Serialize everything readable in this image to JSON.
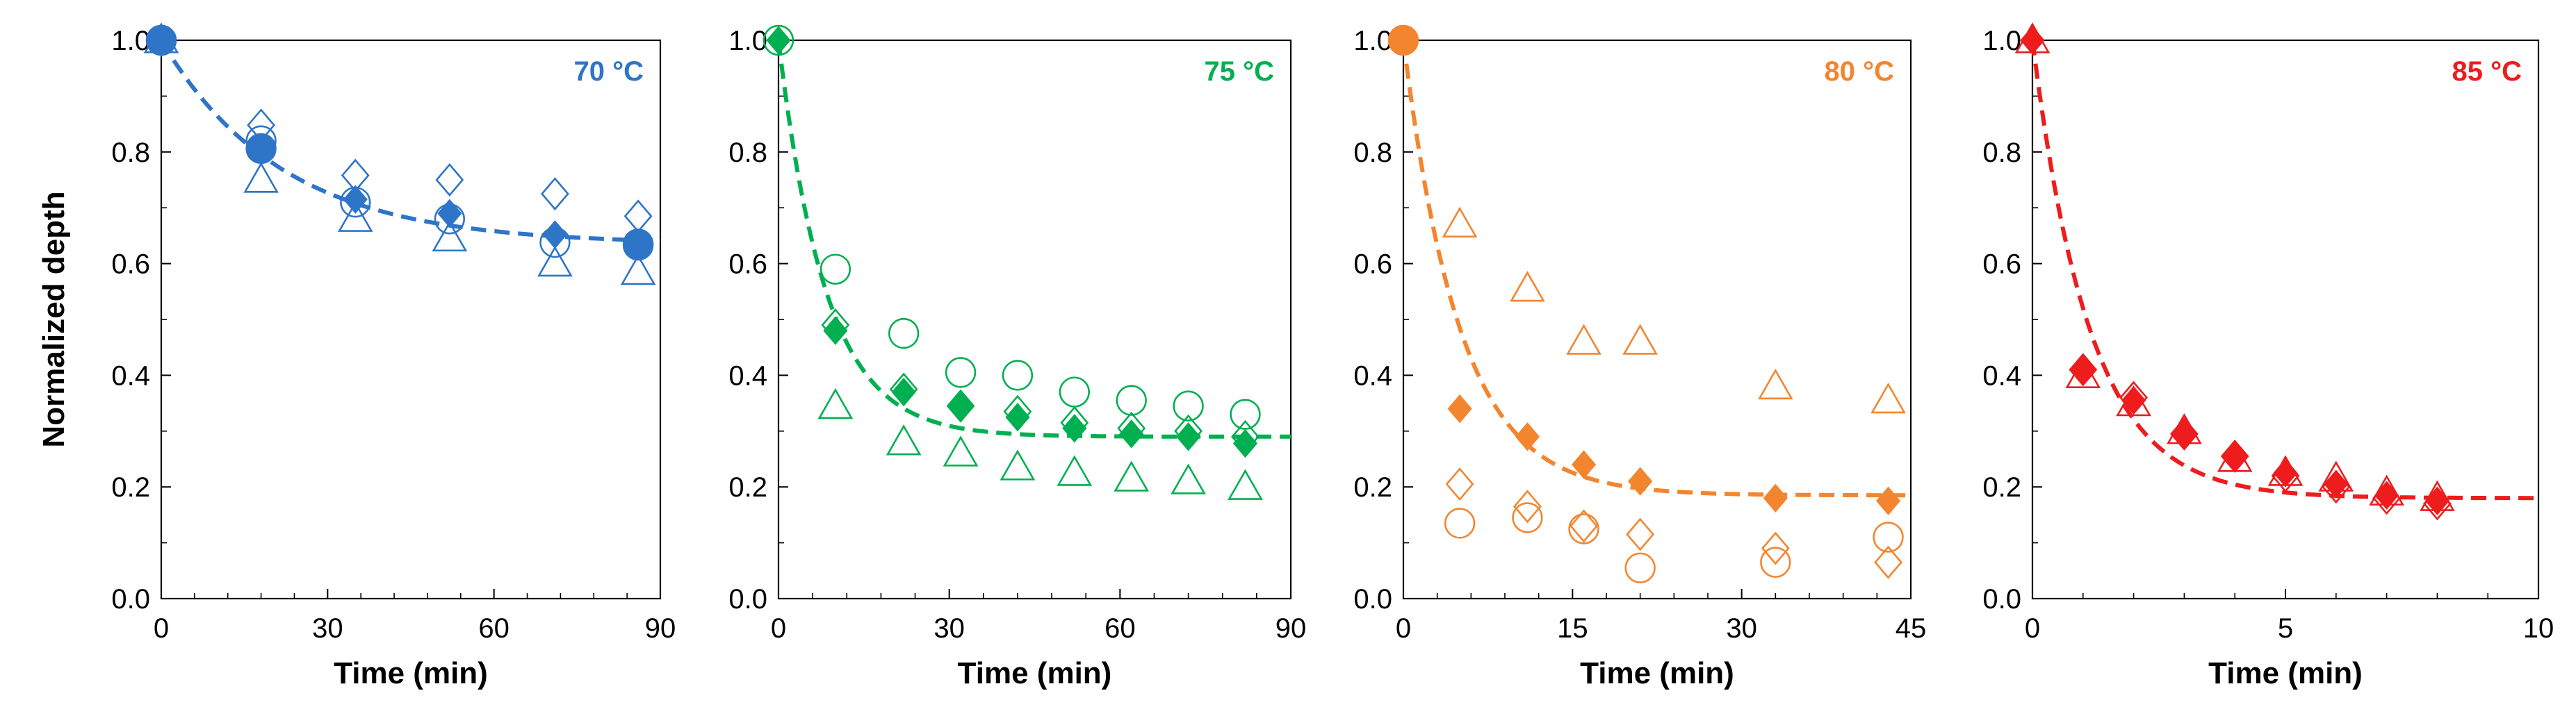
{
  "figure": {
    "ylabel": "Normalized depth"
  },
  "chart_data": [
    {
      "type": "scatter",
      "title": "70 °C",
      "color": "#2E75C8",
      "xlabel": "Time (min)",
      "ylabel": "Normalized depth",
      "xlim": [
        0,
        90
      ],
      "ylim": [
        0,
        1.0
      ],
      "xticks": [
        "0",
        "30",
        "60",
        "90"
      ],
      "yticks": [
        "0.0",
        "0.2",
        "0.4",
        "0.6",
        "0.8",
        "1.0"
      ],
      "fit": {
        "type": "exponential",
        "plateau": 0.635,
        "rate": 0.046
      },
      "series": [
        {
          "name": "filled-diamond",
          "marker": "diamond",
          "filled": true,
          "x": [
            0,
            18,
            35,
            52,
            71,
            86
          ],
          "y": [
            1.0,
            0.805,
            0.715,
            0.69,
            0.652,
            0.635
          ]
        },
        {
          "name": "filled-circle",
          "marker": "circle",
          "filled": true,
          "x": [
            0,
            18,
            86
          ],
          "y": [
            1.0,
            0.806,
            0.635
          ]
        },
        {
          "name": "open-diamond",
          "marker": "diamond",
          "filled": false,
          "x": [
            0,
            18,
            35,
            52,
            71,
            86
          ],
          "y": [
            1.0,
            0.848,
            0.758,
            0.75,
            0.725,
            0.685
          ]
        },
        {
          "name": "open-triangle",
          "marker": "triangle",
          "filled": false,
          "x": [
            0,
            18,
            35,
            52,
            71,
            86
          ],
          "y": [
            1.0,
            0.75,
            0.68,
            0.645,
            0.6,
            0.585
          ]
        },
        {
          "name": "open-circle",
          "marker": "circle",
          "filled": false,
          "x": [
            0,
            18,
            35,
            52,
            71,
            86
          ],
          "y": [
            1.0,
            0.82,
            0.71,
            0.68,
            0.638,
            0.633
          ]
        }
      ]
    },
    {
      "type": "scatter",
      "title": "75 °C",
      "color": "#00B050",
      "xlabel": "Time (min)",
      "ylabel": "",
      "xlim": [
        0,
        90
      ],
      "ylim": [
        0,
        1.0
      ],
      "xticks": [
        "0",
        "30",
        "60",
        "90"
      ],
      "yticks": [
        "0.0",
        "0.2",
        "0.4",
        "0.6",
        "0.8",
        "1.0"
      ],
      "fit": {
        "type": "exponential",
        "plateau": 0.29,
        "rate": 0.12
      },
      "series": [
        {
          "name": "filled-diamond",
          "marker": "diamond",
          "filled": true,
          "x": [
            0,
            10,
            22,
            32,
            42,
            52,
            62,
            72,
            82
          ],
          "y": [
            1.0,
            0.48,
            0.37,
            0.345,
            0.325,
            0.305,
            0.295,
            0.29,
            0.278
          ]
        },
        {
          "name": "open-diamond",
          "marker": "diamond",
          "filled": false,
          "x": [
            10,
            22,
            32,
            42,
            52,
            62,
            72,
            82
          ],
          "y": [
            0.49,
            0.375,
            0.345,
            0.335,
            0.315,
            0.305,
            0.3,
            0.29
          ]
        },
        {
          "name": "open-circle",
          "marker": "circle",
          "filled": false,
          "x": [
            0,
            10,
            22,
            32,
            42,
            52,
            62,
            72,
            82
          ],
          "y": [
            1.0,
            0.59,
            0.475,
            0.405,
            0.4,
            0.37,
            0.355,
            0.345,
            0.33
          ]
        },
        {
          "name": "open-triangle",
          "marker": "triangle",
          "filled": false,
          "x": [
            10,
            22,
            32,
            42,
            52,
            62,
            72,
            82
          ],
          "y": [
            0.345,
            0.28,
            0.26,
            0.235,
            0.225,
            0.215,
            0.21,
            0.2
          ]
        }
      ]
    },
    {
      "type": "scatter",
      "title": "80 °C",
      "color": "#F4852F",
      "xlabel": "Time (min)",
      "ylabel": "",
      "xlim": [
        0,
        45
      ],
      "ylim": [
        0,
        1.0
      ],
      "xticks": [
        "0",
        "15",
        "30",
        "45"
      ],
      "yticks": [
        "0.0",
        "0.2",
        "0.4",
        "0.6",
        "0.8",
        "1.0"
      ],
      "fit": {
        "type": "exponential",
        "plateau": 0.185,
        "rate": 0.2
      },
      "series": [
        {
          "name": "filled-diamond",
          "marker": "diamond",
          "filled": true,
          "x": [
            0,
            5,
            11,
            16,
            21,
            33,
            43
          ],
          "y": [
            1.0,
            0.34,
            0.29,
            0.24,
            0.21,
            0.18,
            0.175
          ]
        },
        {
          "name": "filled-circle",
          "marker": "circle",
          "filled": true,
          "x": [
            0
          ],
          "y": [
            1.0
          ]
        },
        {
          "name": "open-triangle",
          "marker": "triangle",
          "filled": false,
          "x": [
            5,
            11,
            16,
            21,
            33,
            43
          ],
          "y": [
            0.67,
            0.555,
            0.46,
            0.46,
            0.38,
            0.355
          ]
        },
        {
          "name": "open-diamond",
          "marker": "diamond",
          "filled": false,
          "x": [
            5,
            11,
            16,
            21,
            33,
            43
          ],
          "y": [
            0.205,
            0.165,
            0.13,
            0.115,
            0.09,
            0.065
          ]
        },
        {
          "name": "open-circle",
          "marker": "circle",
          "filled": false,
          "x": [
            5,
            11,
            16,
            21,
            33,
            43
          ],
          "y": [
            0.135,
            0.145,
            0.125,
            0.055,
            0.065,
            0.11
          ]
        }
      ]
    },
    {
      "type": "scatter",
      "title": "85 °C",
      "color": "#EE1C1C",
      "xlabel": "Time (min)",
      "ylabel": "",
      "xlim": [
        0,
        10
      ],
      "ylim": [
        0,
        1.0
      ],
      "xticks": [
        "0",
        "5",
        "10"
      ],
      "yticks": [
        "0.0",
        "0.2",
        "0.4",
        "0.6",
        "0.8",
        "1.0"
      ],
      "fit": {
        "type": "exponential",
        "plateau": 0.18,
        "rate": 0.88
      },
      "series": [
        {
          "name": "filled-diamond",
          "marker": "diamond",
          "filled": true,
          "x": [
            0,
            1,
            2,
            3,
            4,
            5,
            6,
            7,
            8
          ],
          "y": [
            1.0,
            0.41,
            0.355,
            0.295,
            0.255,
            0.225,
            0.205,
            0.185,
            0.175
          ]
        },
        {
          "name": "open-triangle",
          "marker": "triangle",
          "filled": false,
          "x": [
            0,
            1,
            2,
            3,
            4,
            5,
            6,
            7,
            8
          ],
          "y": [
            1.0,
            0.4,
            0.35,
            0.3,
            0.25,
            0.225,
            0.215,
            0.19,
            0.18
          ]
        },
        {
          "name": "open-diamond",
          "marker": "diamond",
          "filled": false,
          "x": [
            1,
            2,
            3,
            4,
            5,
            6,
            7,
            8
          ],
          "y": [
            0.41,
            0.36,
            0.295,
            0.255,
            0.22,
            0.2,
            0.18,
            0.17
          ]
        }
      ]
    }
  ]
}
